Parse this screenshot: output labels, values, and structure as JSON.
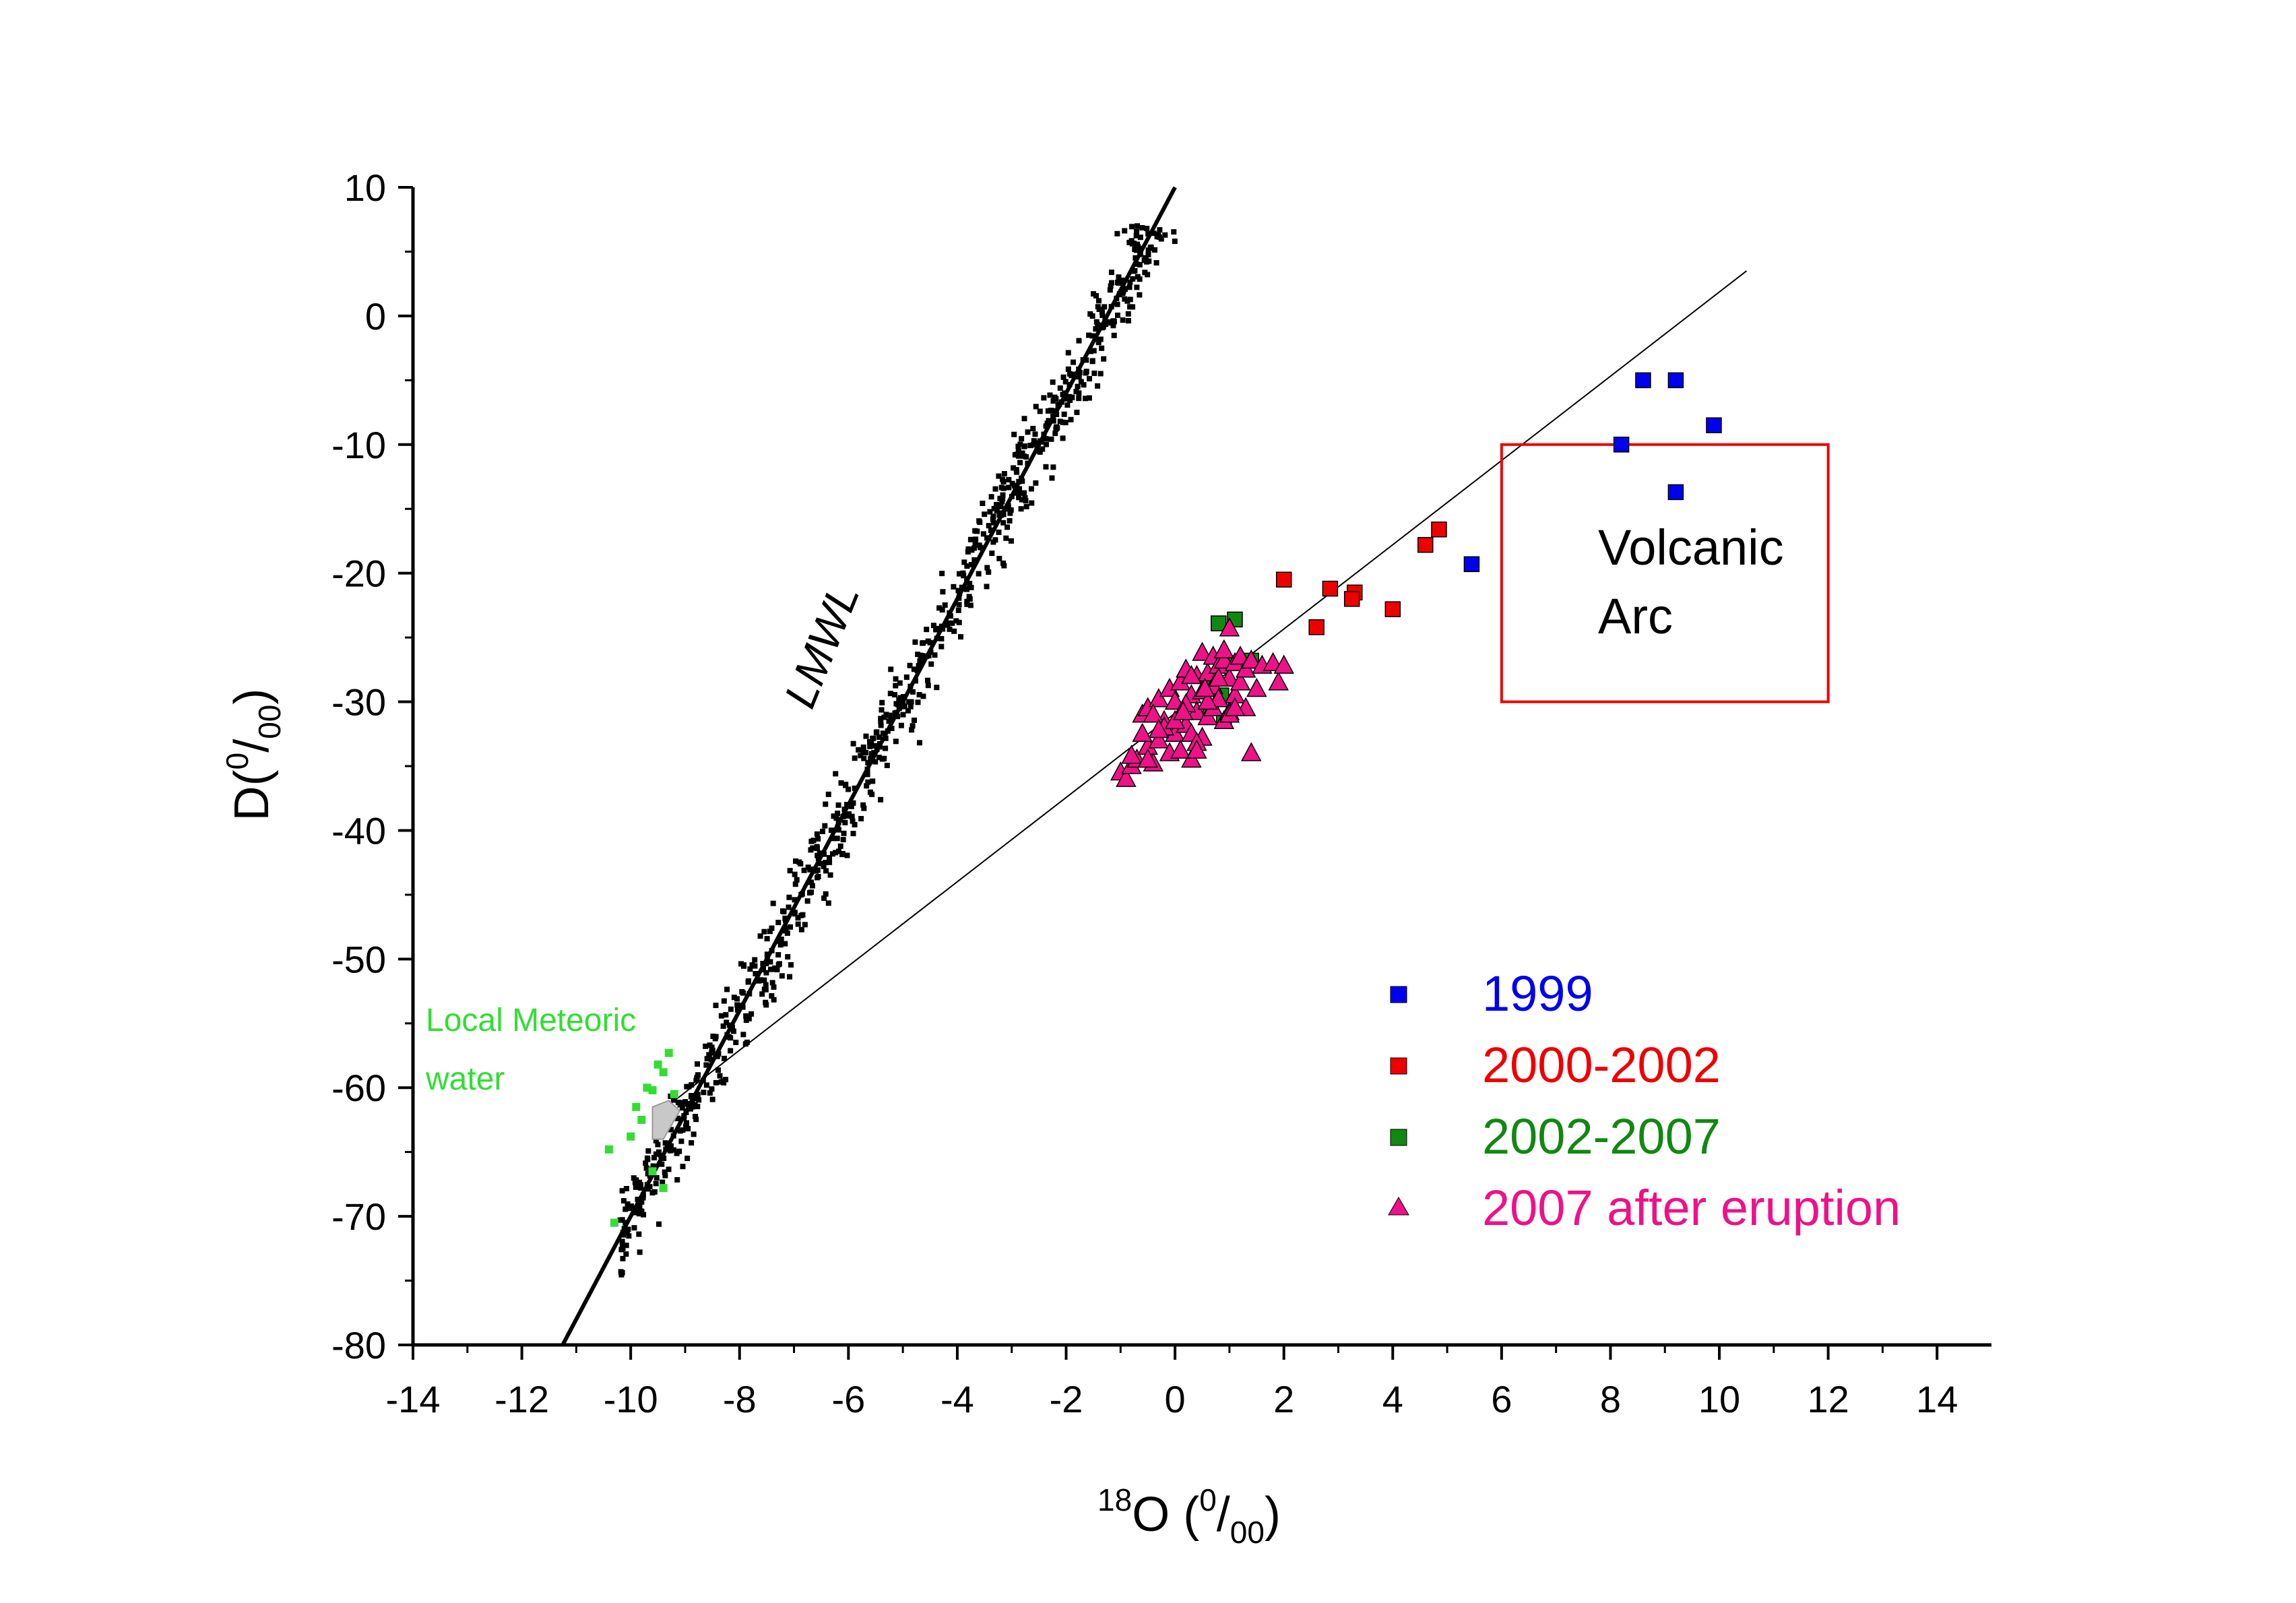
{
  "chart_data": {
    "type": "scatter",
    "xlabel_sup": "18",
    "xlabel_main": "O (",
    "xlabel_frac_num": "0",
    "xlabel_frac_den": "/",
    "xlabel_frac_sub": "00",
    "xlabel_close": ")",
    "ylabel_main": "D(",
    "ylabel_frac_num": "0",
    "ylabel_frac_den": "/",
    "ylabel_frac_sub": "00",
    "ylabel_close": ")",
    "xlim": [
      -14,
      15
    ],
    "ylim": [
      -80,
      10
    ],
    "xticks": [
      -14,
      -12,
      -10,
      -8,
      -6,
      -4,
      -2,
      0,
      2,
      4,
      6,
      8,
      10,
      12,
      14
    ],
    "yticks": [
      -80,
      -70,
      -60,
      -50,
      -40,
      -30,
      -20,
      -10,
      0,
      10
    ],
    "grid": false,
    "legend_position": "bottom-right",
    "annotations": {
      "lmwl": "LMWL",
      "volcanic_arc_line1": "Volcanic",
      "volcanic_arc_line2": "Arc",
      "local_meteoric_line1": "Local Meteoric",
      "local_meteoric_line2": "water"
    },
    "colors": {
      "1999": "#0000ee",
      "2000-2002": "#ee0000",
      "2002-2007": "#118811",
      "2007 after eruption": "#ee1188",
      "local_meteoric": "#33dd33",
      "lmwl_points": "#000000",
      "volcanic_box": "#ee0000"
    },
    "lines": [
      {
        "role": "LMWL",
        "x": [
          -11.25,
          0
        ],
        "y": [
          -80,
          10
        ]
      },
      {
        "role": "mixing",
        "x": [
          -9.5,
          10.5
        ],
        "y": [
          -62,
          3.5
        ]
      }
    ],
    "volcanic_arc_box": {
      "x": [
        6,
        12
      ],
      "y": [
        -30,
        -10
      ]
    },
    "shaded_region": {
      "x": [
        -9.6,
        -9.3,
        -9.1,
        -9.4,
        -9.6
      ],
      "y": [
        -61.5,
        -61,
        -61.8,
        -64,
        -64
      ]
    },
    "series": [
      {
        "name": "1999",
        "marker": "square",
        "x": [
          8.6,
          9.2,
          9.9,
          8.2,
          9.2,
          5.45
        ],
        "y": [
          -5,
          -5,
          -8.5,
          -10,
          -13.7,
          -19.3
        ]
      },
      {
        "name": "2000-2002",
        "marker": "square",
        "x": [
          4.85,
          4.6,
          2.0,
          2.85,
          3.3,
          3.25,
          4.0,
          2.6
        ],
        "y": [
          -16.6,
          -17.8,
          -20.5,
          -21.2,
          -21.5,
          -22.0,
          -22.8,
          -24.2
        ]
      },
      {
        "name": "2002-2007",
        "marker": "square",
        "x": [
          0.8,
          1.1,
          0.95,
          1.4,
          0.7,
          0.85,
          0.65,
          0.9
        ],
        "y": [
          -23.9,
          -23.6,
          -27.0,
          -26.8,
          -28.1,
          -29.5,
          -30.5,
          -31.5
        ]
      },
      {
        "name": "2007 after eruption",
        "marker": "triangle",
        "x": [
          -1.0,
          -0.9,
          -0.8,
          -0.7,
          -0.6,
          -0.5,
          -0.5,
          -0.4,
          -0.3,
          -0.3,
          -0.2,
          -0.1,
          -0.1,
          0.0,
          0.0,
          0.1,
          0.1,
          0.2,
          0.2,
          0.3,
          0.3,
          0.3,
          0.4,
          0.4,
          0.5,
          0.5,
          0.5,
          0.6,
          0.6,
          0.7,
          0.7,
          0.7,
          0.8,
          0.8,
          0.9,
          0.9,
          1.0,
          1.0,
          1.0,
          1.1,
          1.1,
          1.2,
          1.2,
          1.3,
          1.3,
          1.4,
          1.4,
          1.5,
          1.6,
          1.8,
          1.9,
          2.0,
          -0.6,
          -0.4,
          -0.2,
          0.0,
          0.2,
          0.4,
          0.6,
          0.8,
          1.0,
          -0.5,
          0.3,
          0.9,
          1.1,
          0.4,
          -0.8,
          -0.3,
          0.15,
          0.55
        ],
        "y": [
          -35.5,
          -36.0,
          -35.0,
          -34.5,
          -31.0,
          -33.5,
          -30.5,
          -34.8,
          -33.0,
          -29.8,
          -31.5,
          -34.0,
          -29.0,
          -32.5,
          -30.0,
          -28.5,
          -33.8,
          -31.8,
          -27.5,
          -29.5,
          -32.5,
          -34.5,
          -28.0,
          -30.8,
          -26.2,
          -29.2,
          -32.8,
          -27.8,
          -31.2,
          -26.5,
          -28.8,
          -30.5,
          -27.2,
          -29.8,
          -26.8,
          -31.5,
          -24.3,
          -28.2,
          -30.8,
          -27.0,
          -29.5,
          -26.5,
          -28.5,
          -27.5,
          -30.5,
          -26.8,
          -34.0,
          -29.0,
          -27.2,
          -27.0,
          -28.5,
          -27.2,
          -32.5,
          -31.0,
          -32.0,
          -31.5,
          -30.2,
          -33.2,
          -30.0,
          -28.2,
          -31.0,
          -34.5,
          -28.0,
          -26.0,
          -30.5,
          -33.8,
          -34.2,
          -32.2,
          -30.8,
          -29.0
        ]
      },
      {
        "name": "local_meteoric",
        "marker": "square_small",
        "x": [
          -9.3,
          -9.5,
          -9.4,
          -9.7,
          -9.6,
          -9.2,
          -9.9,
          -9.8,
          -10.0,
          -10.4,
          -9.6,
          -9.4,
          -10.3
        ],
        "y": [
          -57.3,
          -58.2,
          -58.8,
          -60.0,
          -60.2,
          -60.5,
          -61.5,
          -62.5,
          -63.8,
          -64.8,
          -66.5,
          -67.8,
          -70.5
        ]
      }
    ]
  }
}
